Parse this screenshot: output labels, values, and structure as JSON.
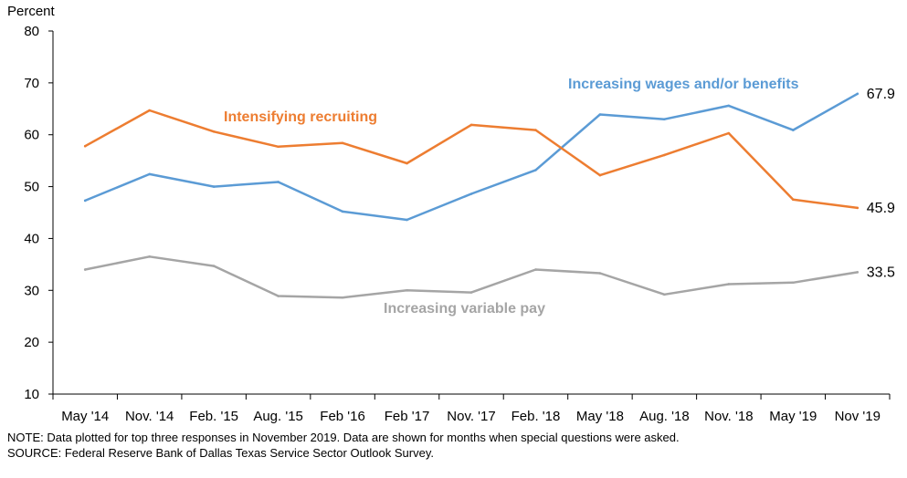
{
  "chart_data": {
    "type": "line",
    "ylabel": "Percent",
    "ylim": [
      10,
      80
    ],
    "yticks": [
      "10",
      "20",
      "30",
      "40",
      "50",
      "60",
      "70",
      "80"
    ],
    "categories": [
      "May '14",
      "Nov. '14",
      "Feb. '15",
      "Aug. '15",
      "Feb '16",
      "Feb '17",
      "Nov. '17",
      "Feb. '18",
      "May '18",
      "Aug. '18",
      "Nov. '18",
      "May '19",
      "Nov '19"
    ],
    "grid": false,
    "series": [
      {
        "name": "Increasing wages and/or benefits",
        "color": "#5b9bd5",
        "values": [
          47.3,
          52.4,
          50.0,
          50.9,
          45.2,
          43.6,
          48.6,
          53.2,
          63.9,
          63.0,
          65.6,
          60.9,
          67.9
        ],
        "end_label": "67.9"
      },
      {
        "name": "Intensifying recruiting",
        "color": "#ed7d31",
        "values": [
          57.8,
          64.7,
          60.6,
          57.7,
          58.4,
          54.5,
          61.9,
          60.9,
          52.2,
          56.1,
          60.3,
          47.5,
          45.9
        ],
        "end_label": "45.9"
      },
      {
        "name": "Increasing variable pay",
        "color": "#a5a5a5",
        "values": [
          34.0,
          36.5,
          34.7,
          28.9,
          28.6,
          30.0,
          29.6,
          34.0,
          33.3,
          29.2,
          31.2,
          31.5,
          33.5
        ],
        "end_label": "33.5"
      }
    ]
  },
  "notes": {
    "note": "NOTE: Data plotted for top three responses in November 2019. Data are shown for months when special questions were asked.",
    "source": "SOURCE: Federal Reserve Bank of Dallas Texas Service Sector Outlook Survey."
  }
}
